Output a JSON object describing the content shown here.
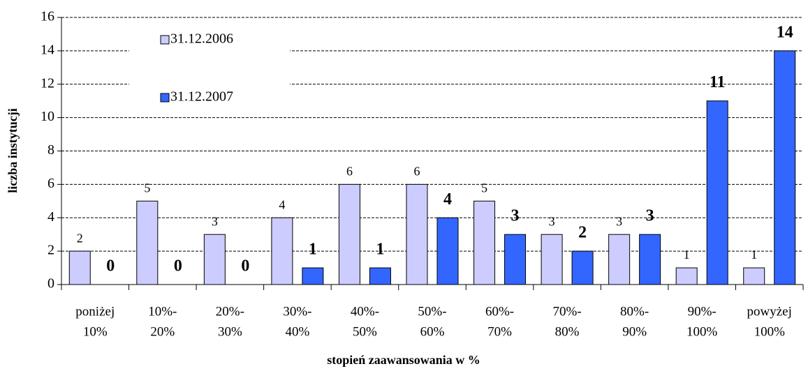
{
  "chart_data": {
    "type": "bar",
    "x_label": "stopień zaawansowania w %",
    "y_label": "liczba instytucji",
    "categories": [
      [
        "poniżej",
        "10%"
      ],
      [
        "10%-",
        "20%"
      ],
      [
        "20%-",
        "30%"
      ],
      [
        "30%-",
        "40%"
      ],
      [
        "40%-",
        "50%"
      ],
      [
        "50%-",
        "60%"
      ],
      [
        "60%-",
        "70%"
      ],
      [
        "70%-",
        "80%"
      ],
      [
        "80%-",
        "90%"
      ],
      [
        "90%-",
        "100%"
      ],
      [
        "powyżej",
        "100%"
      ]
    ],
    "series": [
      {
        "name": "31.12.2006",
        "color": "#ccccff",
        "values": [
          2,
          5,
          3,
          4,
          6,
          6,
          5,
          3,
          3,
          1,
          1
        ]
      },
      {
        "name": "31.12.2007",
        "color": "#3366ff",
        "values": [
          0,
          0,
          0,
          1,
          1,
          4,
          3,
          2,
          3,
          11,
          14
        ]
      }
    ],
    "ylim": [
      0,
      16
    ],
    "yticks": [
      0,
      2,
      4,
      6,
      8,
      10,
      12,
      14,
      16
    ],
    "grid": true
  }
}
